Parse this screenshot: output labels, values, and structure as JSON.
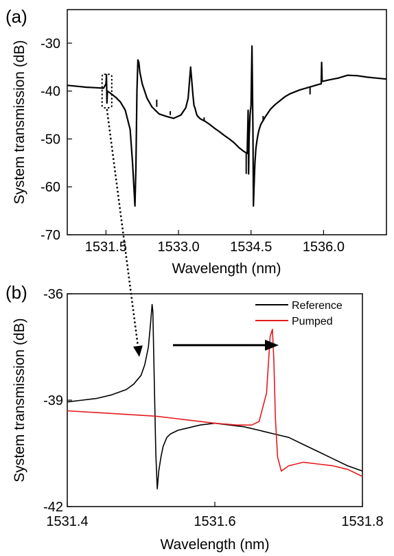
{
  "chart_data": [
    {
      "panel": "(a)",
      "type": "line",
      "xlabel": "Wavelength (nm)",
      "ylabel": "System transmission (dB)",
      "xlim": [
        1530.7,
        1537.3
      ],
      "ylim": [
        -70,
        -23
      ],
      "xticks": [
        1531.5,
        1533.0,
        1534.5,
        1536.0
      ],
      "xtick_labels": [
        "1531.5",
        "1533.0",
        "1534.5",
        "1536.0"
      ],
      "yticks": [
        -70,
        -60,
        -50,
        -40,
        -30
      ],
      "ytick_labels": [
        "-70",
        "-60",
        "-50",
        "-40",
        "-30"
      ],
      "highlight_box_x": [
        1531.42,
        1531.62
      ],
      "highlight_box_y": [
        -36.5,
        -43.5
      ],
      "grid": false,
      "series": [
        {
          "color": "#000000",
          "x": [
            1530.7,
            1530.9,
            1531.1,
            1531.3,
            1531.45,
            1531.5,
            1531.51,
            1531.52,
            1531.53,
            1531.6,
            1531.7,
            1531.8,
            1531.9,
            1532.0,
            1532.05,
            1532.1,
            1532.12,
            1532.14,
            1532.16,
            1532.18,
            1532.2,
            1532.25,
            1532.3,
            1532.35,
            1532.45,
            1532.6,
            1532.75,
            1532.9,
            1533.05,
            1533.15,
            1533.2,
            1533.25,
            1533.3,
            1533.32,
            1533.34,
            1533.36,
            1533.38,
            1533.4,
            1533.45,
            1533.55,
            1533.65,
            1533.75,
            1533.85,
            1533.95,
            1534.05,
            1534.15,
            1534.25,
            1534.35,
            1534.42,
            1534.44,
            1534.45,
            1534.46,
            1534.48,
            1534.5,
            1534.52,
            1534.54,
            1534.55,
            1534.56,
            1534.57,
            1534.58,
            1534.59,
            1534.6,
            1534.62,
            1534.64,
            1534.66,
            1534.7,
            1534.8,
            1534.9,
            1535.0,
            1535.1,
            1535.2,
            1535.3,
            1535.5,
            1535.7,
            1535.9,
            1535.95,
            1535.96,
            1535.97,
            1536.1,
            1536.3,
            1536.5,
            1536.7,
            1536.9,
            1537.1,
            1537.3
          ],
          "values": [
            -38.8,
            -39.0,
            -39.2,
            -39.3,
            -39.4,
            -38.5,
            -36.6,
            -42.5,
            -40.0,
            -40.5,
            -41.3,
            -42.3,
            -44.0,
            -48.0,
            -55.0,
            -64.0,
            -56.0,
            -40.0,
            -33.5,
            -34.0,
            -36.0,
            -38.5,
            -40.0,
            -41.5,
            -43.3,
            -44.8,
            -45.3,
            -45.7,
            -45.0,
            -43.5,
            -41.5,
            -35.0,
            -41.0,
            -43.0,
            -43.5,
            -44.3,
            -45.0,
            -45.3,
            -45.8,
            -46.3,
            -47.0,
            -47.8,
            -48.5,
            -49.3,
            -50.0,
            -50.8,
            -51.8,
            -52.6,
            -53.0,
            -44.0,
            -57.3,
            -50.0,
            -45.0,
            -43.0,
            -30.6,
            -48.0,
            -64.0,
            -60.5,
            -57.5,
            -55.0,
            -53.5,
            -52.0,
            -50.5,
            -49.3,
            -48.3,
            -47.0,
            -45.3,
            -43.8,
            -42.8,
            -42.0,
            -41.2,
            -40.6,
            -39.8,
            -39.2,
            -38.6,
            -38.5,
            -34.0,
            -38.0,
            -37.7,
            -37.3,
            -36.7,
            -36.8,
            -37.1,
            -37.3,
            -37.5
          ]
        }
      ],
      "spikes": [
        {
          "x": 1532.55,
          "from": -43.3,
          "to": -41.8
        },
        {
          "x": 1532.83,
          "from": -45.0,
          "to": -44.2
        },
        {
          "x": 1533.53,
          "from": -46.3,
          "to": -45.5
        },
        {
          "x": 1534.4,
          "from": -52.8,
          "to": -57.3
        },
        {
          "x": 1534.75,
          "from": -46.3,
          "to": -45.2
        },
        {
          "x": 1535.72,
          "from": -39.1,
          "to": -40.7
        }
      ]
    },
    {
      "panel": "(b)",
      "type": "line",
      "xlabel": "Wavelength (nm)",
      "ylabel": "System transmission (dB)",
      "xlim": [
        1531.4,
        1531.8
      ],
      "ylim": [
        -42,
        -36
      ],
      "xticks": [
        1531.4,
        1531.6,
        1531.8
      ],
      "xtick_labels": [
        "1531.4",
        "1531.6",
        "1531.8"
      ],
      "yticks": [
        -42,
        -39,
        -36
      ],
      "ytick_labels": [
        "-42",
        "-39",
        "-36"
      ],
      "grid": false,
      "legend_position": "top-right",
      "series": [
        {
          "name": "Reference",
          "color": "#000000",
          "x": [
            1531.4,
            1531.42,
            1531.44,
            1531.46,
            1531.48,
            1531.49,
            1531.5,
            1531.505,
            1531.51,
            1531.513,
            1531.515,
            1531.516,
            1531.518,
            1531.52,
            1531.522,
            1531.524,
            1531.527,
            1531.53,
            1531.535,
            1531.54,
            1531.55,
            1531.56,
            1531.58,
            1531.6,
            1531.62,
            1531.64,
            1531.66,
            1531.68,
            1531.7,
            1531.72,
            1531.74,
            1531.76,
            1531.78,
            1531.8
          ],
          "values": [
            -39.05,
            -39.0,
            -38.95,
            -38.85,
            -38.7,
            -38.55,
            -38.3,
            -38.0,
            -37.5,
            -36.8,
            -36.3,
            -36.5,
            -38.5,
            -40.5,
            -41.5,
            -41.0,
            -40.6,
            -40.3,
            -40.05,
            -39.95,
            -39.85,
            -39.8,
            -39.7,
            -39.65,
            -39.7,
            -39.75,
            -39.85,
            -39.95,
            -40.05,
            -40.25,
            -40.45,
            -40.65,
            -40.85,
            -41.0
          ]
        },
        {
          "name": "Pumped",
          "color": "#e41a1c",
          "x": [
            1531.4,
            1531.44,
            1531.48,
            1531.52,
            1531.56,
            1531.6,
            1531.63,
            1531.65,
            1531.66,
            1531.67,
            1531.675,
            1531.678,
            1531.68,
            1531.682,
            1531.685,
            1531.69,
            1531.7,
            1531.72,
            1531.74,
            1531.76,
            1531.78,
            1531.8
          ],
          "values": [
            -39.3,
            -39.35,
            -39.4,
            -39.45,
            -39.55,
            -39.65,
            -39.7,
            -39.7,
            -39.6,
            -38.8,
            -37.2,
            -37.0,
            -37.9,
            -39.5,
            -40.6,
            -41.0,
            -40.85,
            -40.75,
            -40.8,
            -40.85,
            -40.95,
            -41.15
          ]
        }
      ],
      "arrow_from_x": 1531.52,
      "arrow_to_x": 1531.64,
      "arrow_y": -37.45
    }
  ]
}
